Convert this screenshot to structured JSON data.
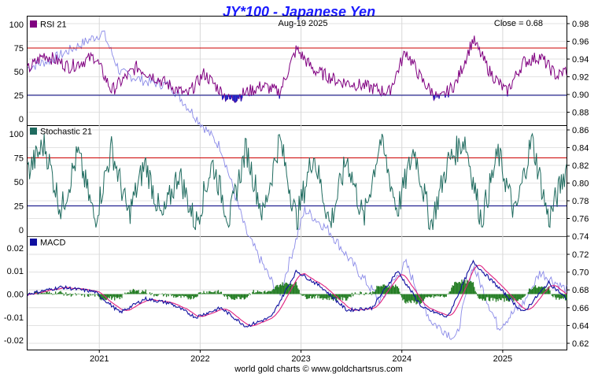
{
  "header": {
    "title": "JY*100  -  Japanese Yen",
    "date": "Aug-19  2025",
    "close": "Close = 0.68"
  },
  "footer": "world gold charts © www.goldchartsrus.com",
  "colors": {
    "title": "#1a1aff",
    "rsi": "#800080",
    "stochastic": "#1f6b5f",
    "macd": "#1010a0",
    "macd_signal": "#e0207f",
    "histogram": "#1f7a1f",
    "price": "#8a8ae8",
    "upper_ref": "#cc0000",
    "lower_ref": "#000080",
    "grid": "#d8d8d8"
  },
  "chart_data": {
    "type": "line",
    "x_ticks": [
      "2021",
      "2022",
      "2023",
      "2024",
      "2025"
    ],
    "x_range": [
      "2020-04",
      "2025-08-19"
    ],
    "price_axis": {
      "top_panels_ticks": [
        "0.98",
        "0.96",
        "0.94",
        "0.92",
        "0.90",
        "0.88",
        "0.86",
        "0.84",
        "0.82",
        "0.80",
        "0.78",
        "0.76",
        "0.74"
      ],
      "macd_panel_ticks": [
        "0.72",
        "0.70",
        "0.68",
        "0.66",
        "0.64",
        "0.62"
      ]
    },
    "price_series": {
      "name": "JY*100",
      "points": [
        [
          "2020-04",
          0.93
        ],
        [
          "2020-07",
          0.94
        ],
        [
          "2020-10",
          0.955
        ],
        [
          "2021-01",
          0.97
        ],
        [
          "2021-03",
          0.925
        ],
        [
          "2021-06",
          0.915
        ],
        [
          "2021-09",
          0.91
        ],
        [
          "2021-12",
          0.875
        ],
        [
          "2022-03",
          0.84
        ],
        [
          "2022-06",
          0.745
        ],
        [
          "2022-09",
          0.69
        ],
        [
          "2022-10",
          0.675
        ],
        [
          "2023-01",
          0.77
        ],
        [
          "2023-04",
          0.745
        ],
        [
          "2023-07",
          0.705
        ],
        [
          "2023-10",
          0.667
        ],
        [
          "2024-01",
          0.71
        ],
        [
          "2024-04",
          0.645
        ],
        [
          "2024-07",
          0.625
        ],
        [
          "2024-09",
          0.708
        ],
        [
          "2024-12",
          0.638
        ],
        [
          "2025-03",
          0.665
        ],
        [
          "2025-05",
          0.7
        ],
        [
          "2025-08-19",
          0.68
        ]
      ]
    },
    "panels": [
      {
        "name": "RSI 21",
        "ylim": [
          0,
          100
        ],
        "y_ticks": [
          "100",
          "75",
          "50",
          "25",
          "0"
        ],
        "reference_lines": [
          75,
          25
        ],
        "points": [
          [
            "2020-04",
            52
          ],
          [
            "2020-06",
            68
          ],
          [
            "2020-09",
            55
          ],
          [
            "2020-12",
            66
          ],
          [
            "2021-02",
            30
          ],
          [
            "2021-05",
            55
          ],
          [
            "2021-08",
            40
          ],
          [
            "2021-11",
            25
          ],
          [
            "2022-01",
            48
          ],
          [
            "2022-04",
            20
          ],
          [
            "2022-06",
            28
          ],
          [
            "2022-08",
            35
          ],
          [
            "2022-10",
            28
          ],
          [
            "2022-12",
            74
          ],
          [
            "2023-02",
            52
          ],
          [
            "2023-05",
            40
          ],
          [
            "2023-08",
            35
          ],
          [
            "2023-11",
            28
          ],
          [
            "2024-01",
            72
          ],
          [
            "2024-03",
            40
          ],
          [
            "2024-05",
            20
          ],
          [
            "2024-07",
            38
          ],
          [
            "2024-09",
            84
          ],
          [
            "2024-11",
            50
          ],
          [
            "2025-01",
            28
          ],
          [
            "2025-03",
            60
          ],
          [
            "2025-05",
            66
          ],
          [
            "2025-07",
            45
          ],
          [
            "2025-08-19",
            52
          ]
        ]
      },
      {
        "name": "Stochastic 21",
        "ylim": [
          0,
          100
        ],
        "y_ticks": [
          "100",
          "75",
          "50",
          "25",
          "0"
        ],
        "reference_lines": [
          75,
          25
        ],
        "points": [
          [
            "2020-04",
            60
          ],
          [
            "2020-06",
            90
          ],
          [
            "2020-08",
            20
          ],
          [
            "2020-10",
            80
          ],
          [
            "2020-12",
            10
          ],
          [
            "2021-02",
            85
          ],
          [
            "2021-04",
            15
          ],
          [
            "2021-06",
            70
          ],
          [
            "2021-08",
            10
          ],
          [
            "2021-10",
            60
          ],
          [
            "2021-12",
            5
          ],
          [
            "2022-02",
            70
          ],
          [
            "2022-04",
            10
          ],
          [
            "2022-06",
            85
          ],
          [
            "2022-08",
            15
          ],
          [
            "2022-10",
            95
          ],
          [
            "2022-12",
            10
          ],
          [
            "2023-02",
            80
          ],
          [
            "2023-04",
            5
          ],
          [
            "2023-06",
            75
          ],
          [
            "2023-08",
            10
          ],
          [
            "2023-10",
            95
          ],
          [
            "2023-12",
            20
          ],
          [
            "2024-02",
            85
          ],
          [
            "2024-04",
            5
          ],
          [
            "2024-06",
            70
          ],
          [
            "2024-08",
            95
          ],
          [
            "2024-10",
            10
          ],
          [
            "2024-12",
            80
          ],
          [
            "2025-02",
            15
          ],
          [
            "2025-04",
            95
          ],
          [
            "2025-06",
            10
          ],
          [
            "2025-08-19",
            65
          ]
        ]
      },
      {
        "name": "MACD",
        "ylim": [
          -0.022,
          0.022
        ],
        "y_ticks": [
          "0.02",
          "0.01",
          "0.00",
          "-0.01",
          "-0.02"
        ],
        "points": [
          [
            "2020-04",
            0.0
          ],
          [
            "2020-08",
            0.003
          ],
          [
            "2020-12",
            0.001
          ],
          [
            "2021-03",
            -0.008
          ],
          [
            "2021-06",
            -0.002
          ],
          [
            "2021-09",
            -0.004
          ],
          [
            "2021-12",
            -0.01
          ],
          [
            "2022-03",
            -0.006
          ],
          [
            "2022-06",
            -0.014
          ],
          [
            "2022-09",
            -0.01
          ],
          [
            "2022-12",
            0.01
          ],
          [
            "2023-03",
            0.003
          ],
          [
            "2023-06",
            -0.007
          ],
          [
            "2023-09",
            -0.006
          ],
          [
            "2023-12",
            0.01
          ],
          [
            "2024-03",
            -0.006
          ],
          [
            "2024-06",
            -0.01
          ],
          [
            "2024-09",
            0.014
          ],
          [
            "2024-12",
            0.003
          ],
          [
            "2025-03",
            -0.008
          ],
          [
            "2025-06",
            0.005
          ],
          [
            "2025-08-19",
            -0.002
          ]
        ]
      }
    ]
  }
}
